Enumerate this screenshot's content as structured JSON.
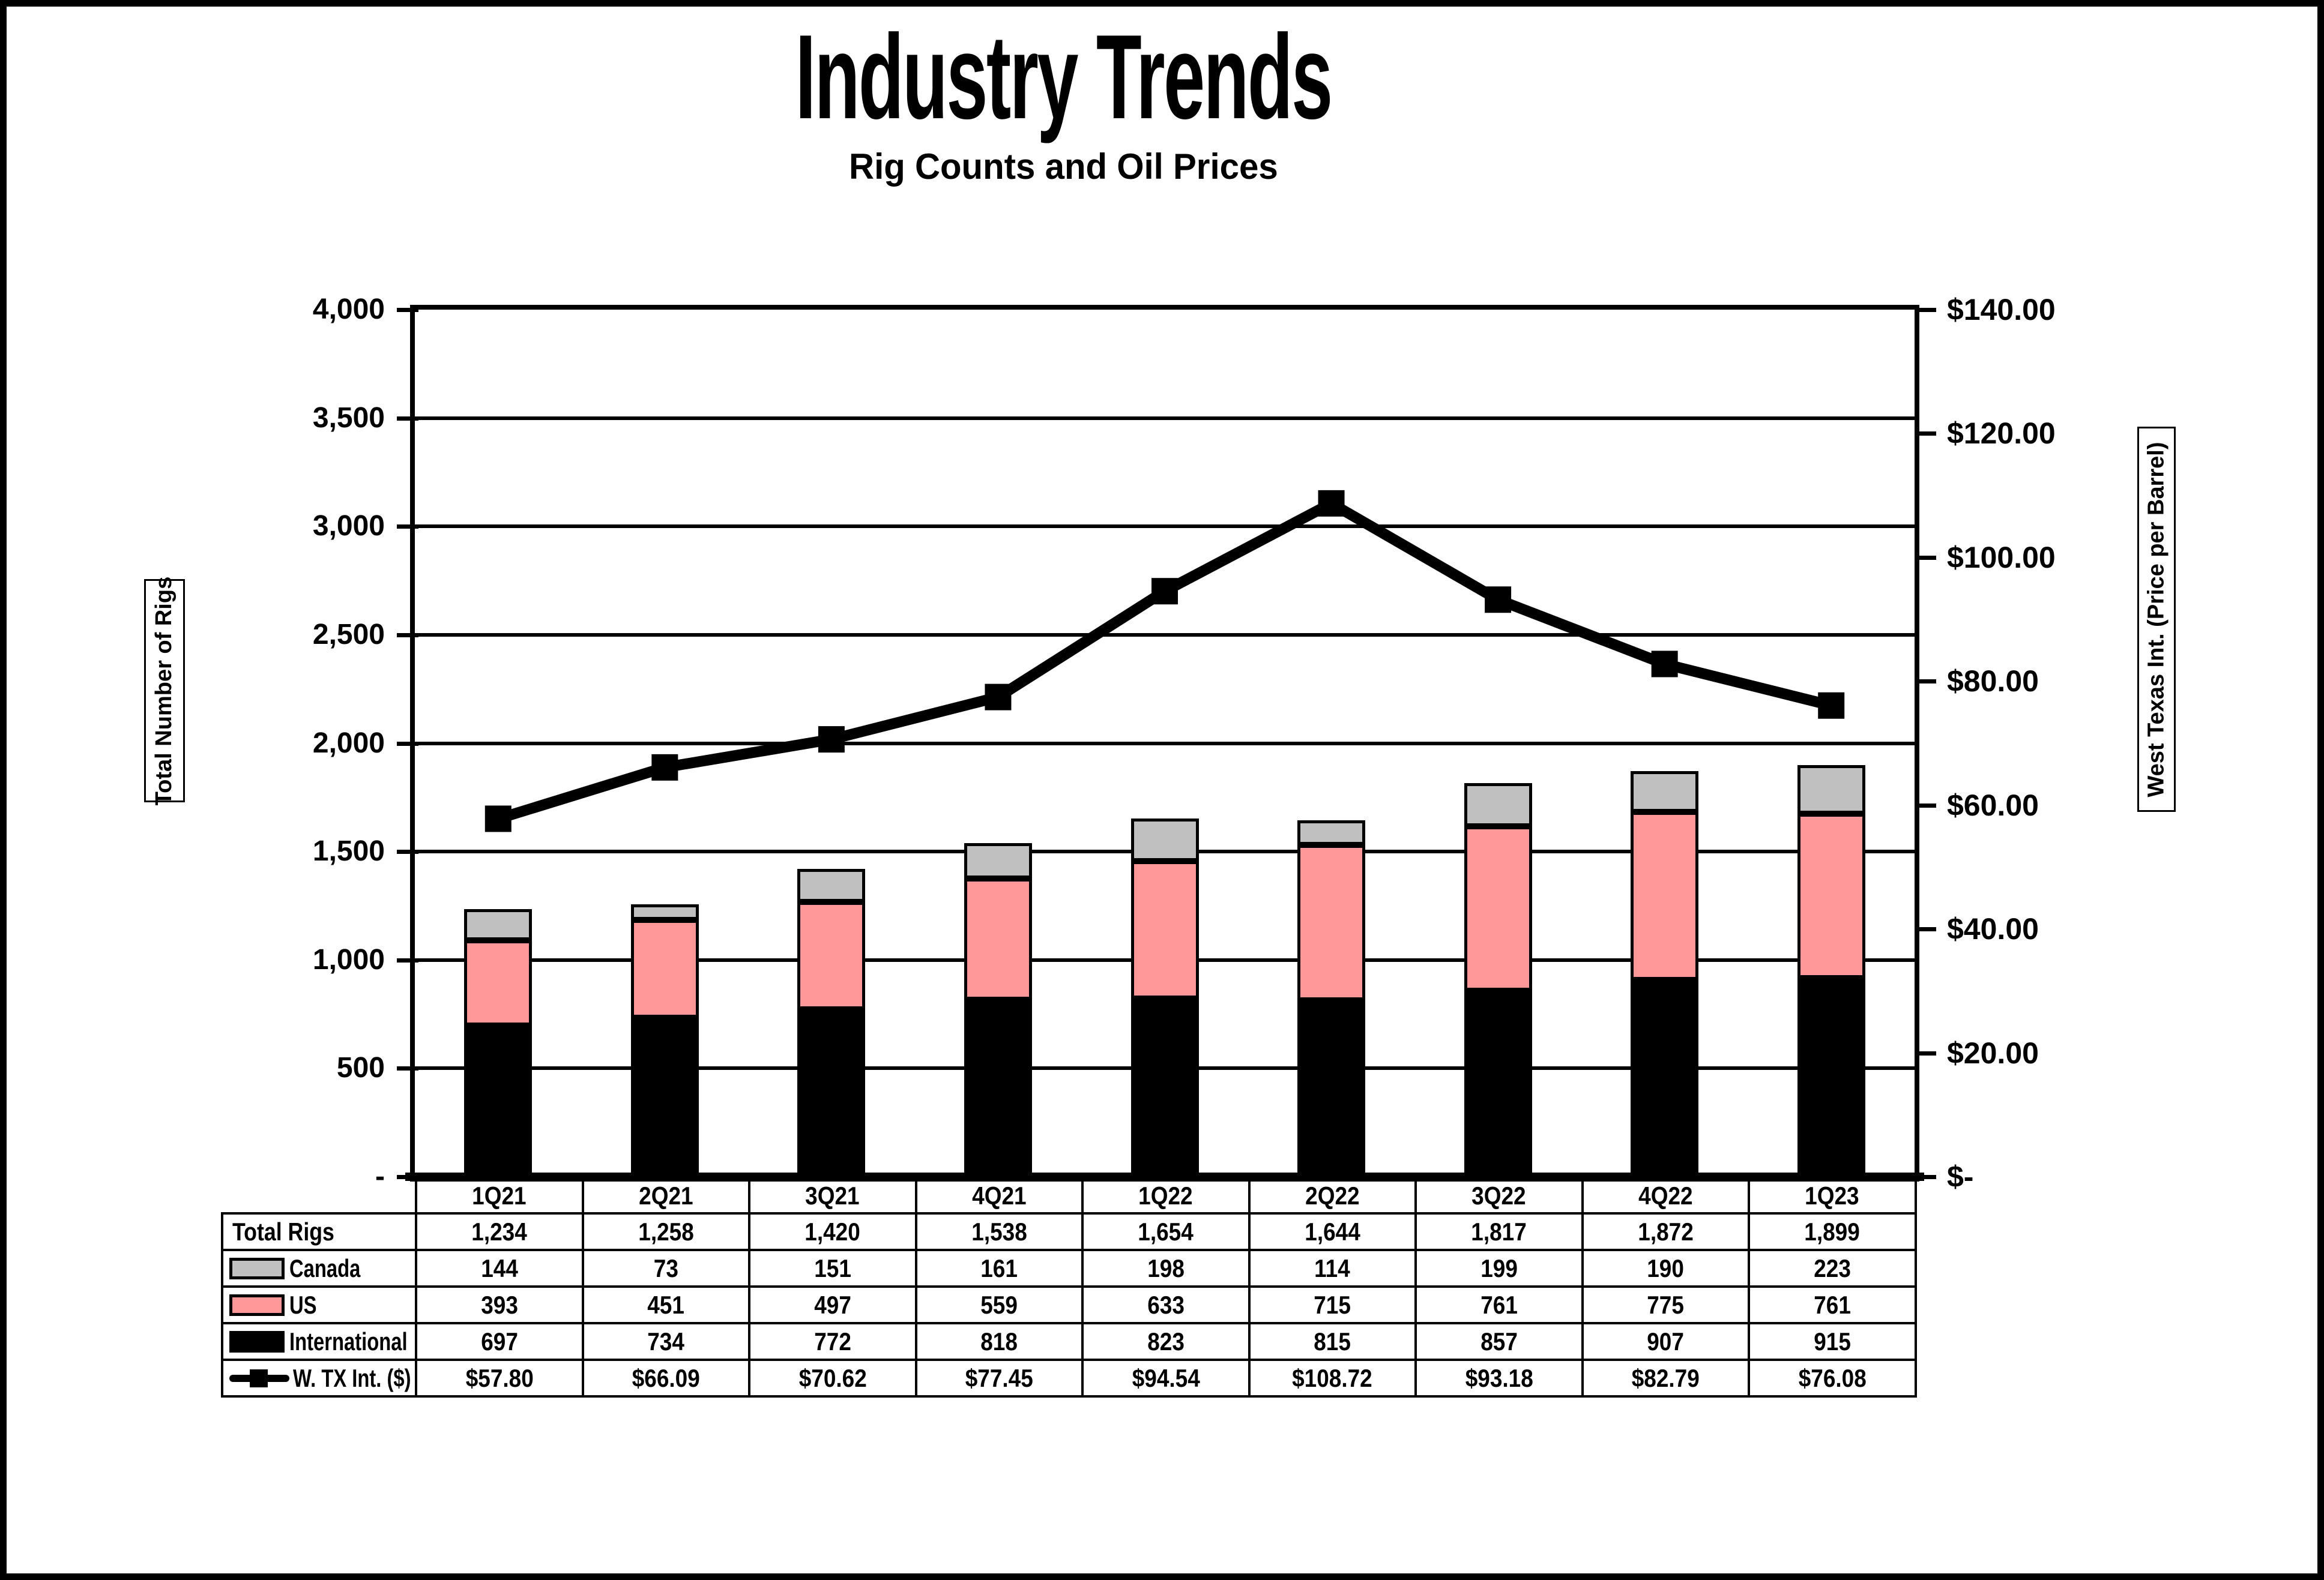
{
  "page": {
    "title": "Industry Trends",
    "subtitle": "Rig Counts and Oil Prices"
  },
  "colors": {
    "international": "#000000",
    "us": "#FF9999",
    "canada": "#C0C0C0",
    "line": "#000000",
    "grid": "#000000",
    "background": "#FFFFFF"
  },
  "chart_data": {
    "type": "combo: stacked bar + line",
    "categories": [
      "1Q21",
      "2Q21",
      "3Q21",
      "4Q21",
      "1Q22",
      "2Q22",
      "3Q22",
      "4Q22",
      "1Q23"
    ],
    "series": [
      {
        "name": "International",
        "type": "bar",
        "color": "#000000",
        "values": [
          697,
          734,
          772,
          818,
          823,
          815,
          857,
          907,
          915
        ]
      },
      {
        "name": "US",
        "type": "bar",
        "color": "#FF9999",
        "values": [
          393,
          451,
          497,
          559,
          633,
          715,
          761,
          775,
          761
        ]
      },
      {
        "name": "Canada",
        "type": "bar",
        "color": "#C0C0C0",
        "values": [
          144,
          73,
          151,
          161,
          198,
          114,
          199,
          190,
          223
        ]
      },
      {
        "name": "W. TX Int. ($)",
        "type": "line",
        "color": "#000000",
        "values": [
          57.8,
          66.09,
          70.62,
          77.45,
          94.54,
          108.72,
          93.18,
          82.79,
          76.08
        ]
      }
    ],
    "totals": [
      1234,
      1258,
      1420,
      1538,
      1654,
      1644,
      1817,
      1872,
      1899
    ],
    "left_axis": {
      "label": "Total Number of Rigs",
      "min": 0,
      "max": 4000,
      "step": 500,
      "tick_labels": [
        "4,000",
        "3,500",
        "3,000",
        "2,500",
        "2,000",
        "1,500",
        "1,000",
        "500",
        "-"
      ]
    },
    "right_axis": {
      "label": "West Texas Int. (Price per Barrel)",
      "min": 0,
      "max": 140,
      "step": 20,
      "tick_labels": [
        "$140.00",
        "$120.00",
        "$100.00",
        "$80.00",
        "$60.00",
        "$40.00",
        "$20.00",
        "$-"
      ]
    },
    "grid": "horizontal major gridlines on",
    "legend_position": "in table row headers"
  },
  "table": {
    "rows": [
      {
        "label": "Total Rigs",
        "swatch": "none",
        "values": [
          "1,234",
          "1,258",
          "1,420",
          "1,538",
          "1,654",
          "1,644",
          "1,817",
          "1,872",
          "1,899"
        ]
      },
      {
        "label": "Canada",
        "swatch": "canada",
        "values": [
          "144",
          "73",
          "151",
          "161",
          "198",
          "114",
          "199",
          "190",
          "223"
        ]
      },
      {
        "label": "US",
        "swatch": "us",
        "values": [
          "393",
          "451",
          "497",
          "559",
          "633",
          "715",
          "761",
          "775",
          "761"
        ]
      },
      {
        "label": "International",
        "swatch": "international",
        "values": [
          "697",
          "734",
          "772",
          "818",
          "823",
          "815",
          "857",
          "907",
          "915"
        ]
      },
      {
        "label": "W. TX Int. ($)",
        "swatch": "line-marker",
        "values": [
          "$57.80",
          "$66.09",
          "$70.62",
          "$77.45",
          "$94.54",
          "$108.72",
          "$93.18",
          "$82.79",
          "$76.08"
        ]
      }
    ]
  }
}
